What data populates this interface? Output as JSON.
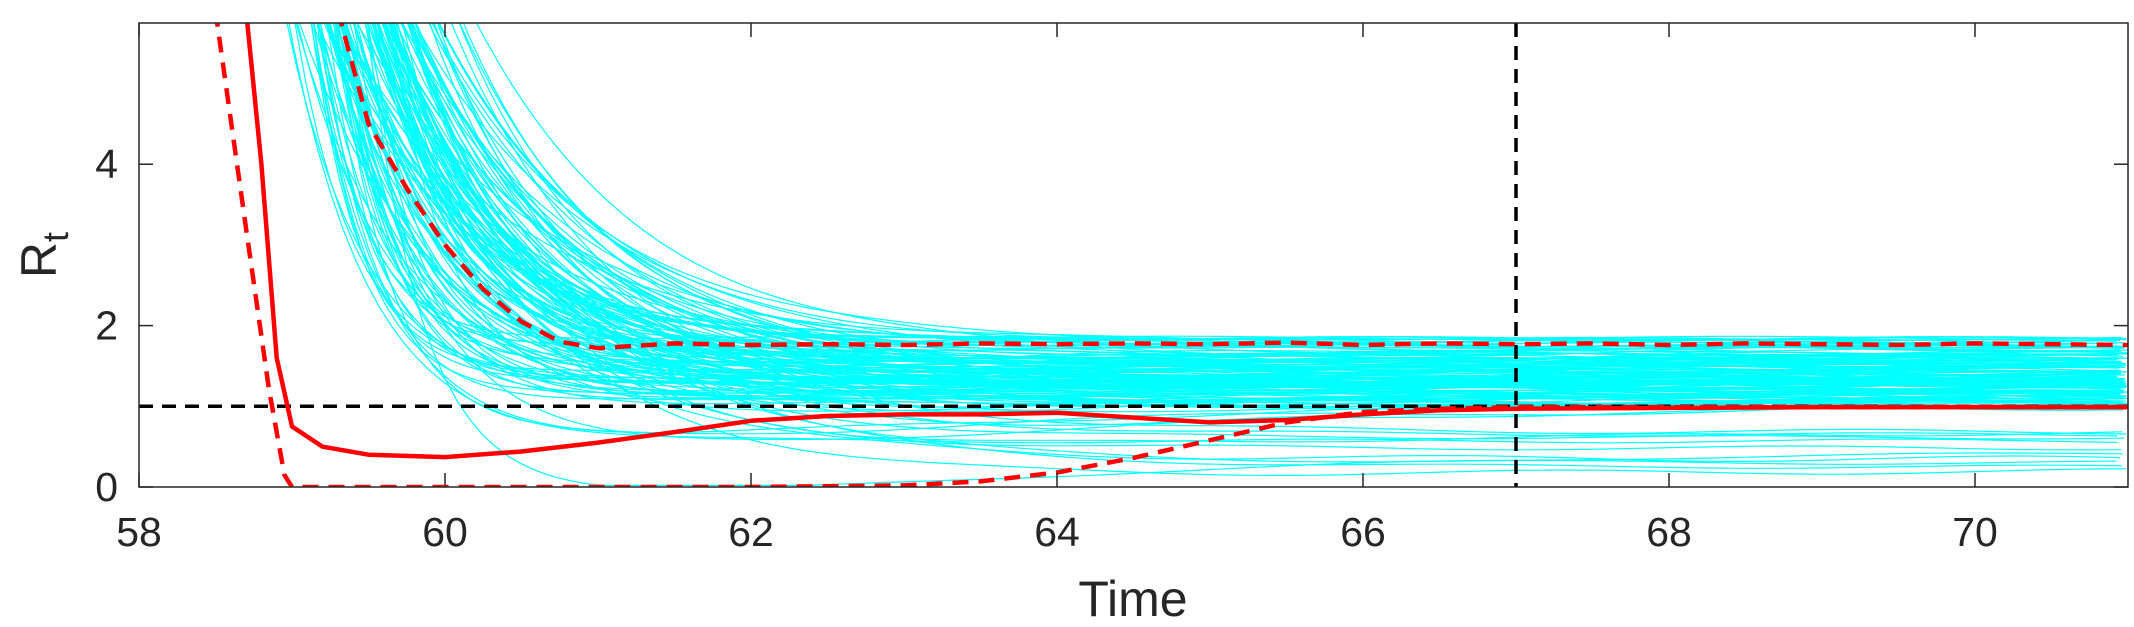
{
  "chart_data": {
    "type": "line",
    "title": "",
    "xlabel": "Time",
    "ylabel": "R",
    "ylabel_subscript": "t",
    "xlim": [
      58,
      71
    ],
    "ylim": [
      0,
      5.75
    ],
    "x_ticks": [
      58,
      60,
      62,
      64,
      66,
      68,
      70
    ],
    "x_tick_labels": [
      "58",
      "60",
      "62",
      "64",
      "66",
      "68",
      "70"
    ],
    "y_ticks": [
      0,
      2,
      4
    ],
    "y_tick_labels": [
      "0",
      "2",
      "4"
    ],
    "grid": false,
    "legend": "none",
    "reference_lines": {
      "horizontal": {
        "y": 1,
        "style": "dashed",
        "color": "#000000"
      },
      "vertical": {
        "x": 67,
        "style": "dashed",
        "color": "#000000"
      }
    },
    "colors": {
      "ensemble": "#00ffff",
      "summary": "#ff0000",
      "reference": "#000000"
    },
    "ensemble": {
      "count": 150,
      "start_x": 58.85,
      "settle_range": [
        0.15,
        1.85
      ],
      "tail_levels_selected": [
        0.2,
        0.25,
        0.3,
        0.35,
        1.1,
        1.3,
        1.5,
        1.7,
        1.85
      ]
    },
    "series": [
      {
        "style": "solid",
        "x": [
          58.7,
          58.8,
          58.9,
          59.0,
          59.2,
          59.5,
          60.0,
          60.5,
          61.0,
          61.5,
          62.0,
          62.5,
          63.0,
          63.5,
          64.0,
          64.5,
          65.0,
          65.5,
          66.0,
          66.5,
          67.0,
          68.0,
          69.0,
          70.0,
          71.0
        ],
        "y": [
          5.9,
          4.0,
          1.6,
          0.75,
          0.5,
          0.4,
          0.37,
          0.44,
          0.55,
          0.68,
          0.82,
          0.88,
          0.9,
          0.9,
          0.92,
          0.86,
          0.8,
          0.83,
          0.9,
          0.95,
          0.97,
          0.98,
          0.99,
          0.99,
          0.99
        ]
      },
      {
        "style": "dashed",
        "x": [
          58.5,
          58.7,
          58.85,
          58.95,
          59.0,
          60.0,
          61.0,
          62.0,
          63.0,
          63.5,
          64.0,
          64.5,
          65.0,
          65.5,
          66.0,
          66.5,
          67.0,
          68.0,
          69.0,
          70.0,
          71.0
        ],
        "y": [
          5.9,
          3.2,
          1.2,
          0.15,
          0.0,
          0.0,
          0.0,
          0.0,
          0.02,
          0.07,
          0.18,
          0.36,
          0.58,
          0.8,
          0.93,
          0.97,
          0.99,
          0.99,
          0.99,
          0.99,
          0.99
        ]
      },
      {
        "style": "dashed",
        "x": [
          59.3,
          59.5,
          59.75,
          60.0,
          60.25,
          60.5,
          60.75,
          61.0,
          61.5,
          62.0,
          62.5,
          63.0,
          63.5,
          64.0,
          64.5,
          65.0,
          65.5,
          66.0,
          66.5,
          67.0,
          67.5,
          68.0,
          68.5,
          69.0,
          69.5,
          70.0,
          70.5,
          71.0
        ],
        "y": [
          5.9,
          4.5,
          3.7,
          3.0,
          2.45,
          2.05,
          1.8,
          1.72,
          1.78,
          1.76,
          1.77,
          1.76,
          1.78,
          1.77,
          1.78,
          1.77,
          1.79,
          1.76,
          1.78,
          1.77,
          1.78,
          1.76,
          1.78,
          1.77,
          1.76,
          1.78,
          1.77,
          1.76
        ]
      }
    ]
  }
}
